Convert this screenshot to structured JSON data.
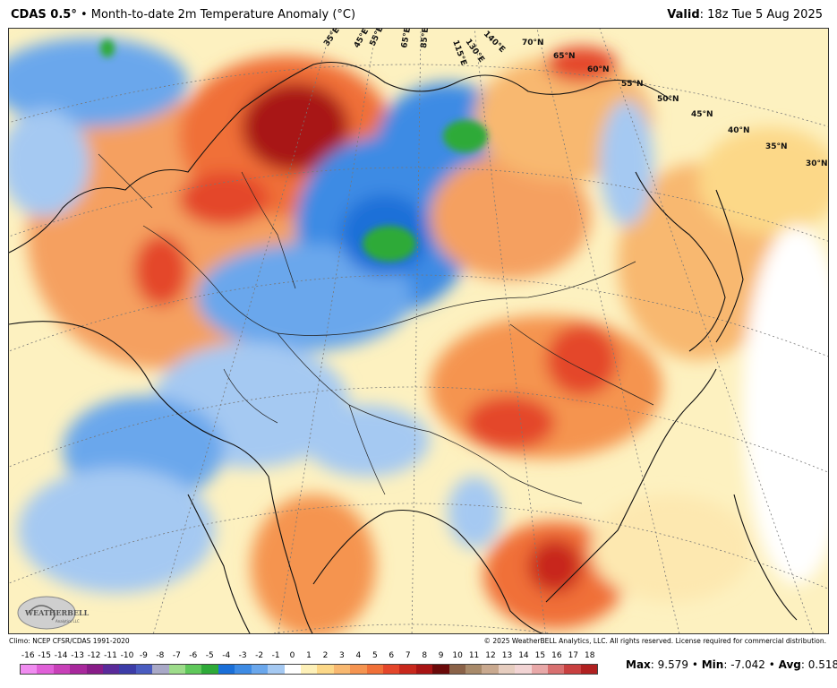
{
  "header": {
    "model": "CDAS 0.5",
    "degree": "°",
    "bullet": "•",
    "title": "Month-to-date 2m Temperature Anomaly (°C)",
    "valid_label": "Valid",
    "valid_value": ": 18z Tue 5 Aug 2025"
  },
  "map": {
    "lon_labels": [
      "35°E",
      "45°E",
      "55°E",
      "65°E",
      "85°E",
      "115°E",
      "130°E",
      "140°E"
    ],
    "lat_labels": [
      "70°N",
      "65°N",
      "60°N",
      "55°N",
      "50°N",
      "45°N",
      "40°N",
      "35°N",
      "30°N"
    ],
    "logo_text": "WEATHERBELL",
    "logo_sub": "Analytics LLC",
    "colors": {
      "strong_warm": "#8b1a10",
      "warm": "#e2452a",
      "mild_warm": "#f5a060",
      "slight_warm": "#fde3a8",
      "neutral": "#fdf3c6",
      "slight_cool": "#d6e6f7",
      "cool": "#6ea6e6",
      "strong_cool": "#1f5fd0",
      "green_cold": "#2eb33a",
      "border": "#111111"
    }
  },
  "footer": {
    "climo": "Climo: NCEP CFSR/CDAS 1991-2020",
    "copyright": "© 2025 WeatherBELL Analytics, LLC. All rights reserved. License required for commercial distribution."
  },
  "colorbar": {
    "ticks": [
      "-16",
      "-15",
      "-14",
      "-13",
      "-12",
      "-11",
      "-10",
      "-9",
      "-8",
      "-7",
      "-6",
      "-5",
      "-4",
      "-3",
      "-2",
      "-1",
      "0",
      "1",
      "2",
      "3",
      "4",
      "5",
      "6",
      "7",
      "8",
      "9",
      "10",
      "11",
      "12",
      "13",
      "14",
      "15",
      "16",
      "17",
      "18"
    ],
    "colors": [
      "#f08cf0",
      "#e060d8",
      "#c840b8",
      "#a8289c",
      "#881c88",
      "#5a2a9a",
      "#3c3ca8",
      "#4a5cc0",
      "#a9a9c7",
      "#9ddc8a",
      "#5fc85a",
      "#2eaa38",
      "#1a6fd8",
      "#3e8be4",
      "#6aa7ec",
      "#a5c9f2",
      "#ffffff",
      "#fdf0b8",
      "#fcd888",
      "#f8b870",
      "#f59450",
      "#f07038",
      "#e4462a",
      "#c8281c",
      "#a81414",
      "#6a0a0a",
      "#8a6248",
      "#a88a6a",
      "#c9a98f",
      "#e6cdbf",
      "#f2d4d4",
      "#e8a8a8",
      "#d87070",
      "#c84040",
      "#b02020"
    ]
  },
  "stats": {
    "max_label": "Max",
    "max_value": ": 9.579",
    "min_label": "Min",
    "min_value": ": -7.042",
    "avg_label": "Avg",
    "avg_value": ": 0.518",
    "sep": "•"
  }
}
